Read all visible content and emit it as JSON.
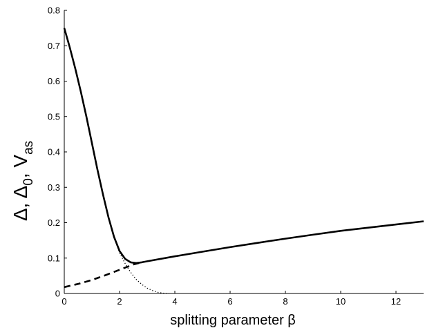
{
  "chart_data": {
    "type": "line",
    "xlabel": "splitting parameter β",
    "ylabel": {
      "part1": "Δ,  Δ",
      "sub1": "0",
      "part2": ",  V",
      "sub2": "as"
    },
    "xlim": [
      0,
      13
    ],
    "ylim": [
      0,
      0.8
    ],
    "x_ticks": [
      0,
      2,
      4,
      6,
      8,
      10,
      12
    ],
    "y_ticks": [
      0,
      0.1,
      0.2,
      0.3,
      0.4,
      0.5,
      0.6,
      0.7,
      0.8
    ],
    "grid": false,
    "legend": "none",
    "series": [
      {
        "style": "solid",
        "color": "#000000",
        "points": [
          [
            0,
            0.75
          ],
          [
            0.2,
            0.695
          ],
          [
            0.4,
            0.635
          ],
          [
            0.6,
            0.57
          ],
          [
            0.8,
            0.5
          ],
          [
            1.0,
            0.425
          ],
          [
            1.2,
            0.35
          ],
          [
            1.4,
            0.28
          ],
          [
            1.6,
            0.215
          ],
          [
            1.8,
            0.16
          ],
          [
            2.0,
            0.12
          ],
          [
            2.2,
            0.098
          ],
          [
            2.4,
            0.088
          ],
          [
            2.6,
            0.086
          ],
          [
            2.8,
            0.088
          ],
          [
            3.0,
            0.091
          ],
          [
            4,
            0.105
          ],
          [
            5,
            0.118
          ],
          [
            6,
            0.131
          ],
          [
            7,
            0.143
          ],
          [
            8,
            0.155
          ],
          [
            9,
            0.166
          ],
          [
            10,
            0.177
          ],
          [
            11,
            0.186
          ],
          [
            12,
            0.195
          ],
          [
            13,
            0.204
          ]
        ]
      },
      {
        "style": "dashed",
        "color": "#000000",
        "points": [
          [
            0,
            0.018
          ],
          [
            0.5,
            0.027
          ],
          [
            1.0,
            0.038
          ],
          [
            1.5,
            0.052
          ],
          [
            2.0,
            0.067
          ],
          [
            2.5,
            0.082
          ],
          [
            2.8,
            0.088
          ]
        ]
      },
      {
        "style": "dotted",
        "color": "#000000",
        "points": [
          [
            1.8,
            0.16
          ],
          [
            2.0,
            0.115
          ],
          [
            2.2,
            0.085
          ],
          [
            2.4,
            0.06
          ],
          [
            2.6,
            0.04
          ],
          [
            2.8,
            0.026
          ],
          [
            3.0,
            0.015
          ],
          [
            3.2,
            0.008
          ],
          [
            3.4,
            0.003
          ],
          [
            3.6,
            0.0008
          ],
          [
            3.8,
            0.0
          ]
        ]
      }
    ]
  }
}
